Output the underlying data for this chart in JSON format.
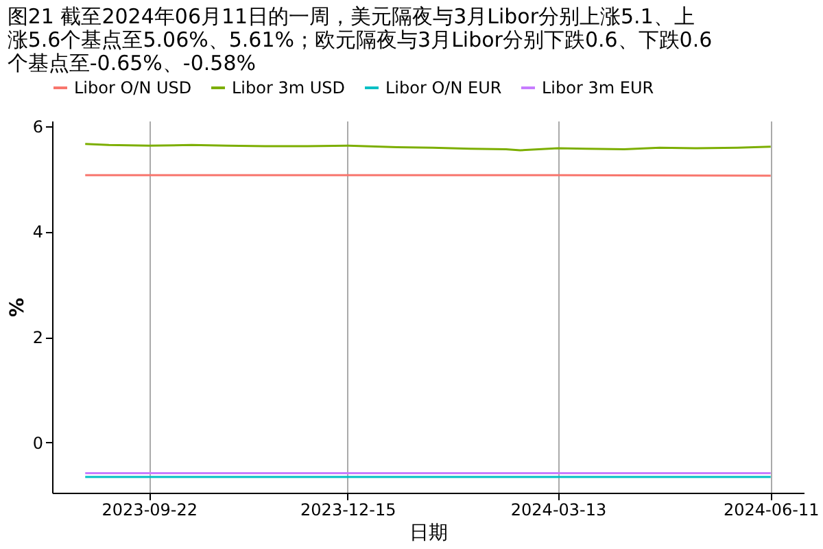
{
  "chart_data": {
    "type": "line",
    "title": "图21  截至2024年06月11日的一周，美元隔夜与3月Libor分别上涨5.1、上涨5.6个基点至5.06%、5.61%；欧元隔夜与3月Libor分别下跌0.6、下跌0.6个基点至-0.65%、-0.58%",
    "xlabel": "日期",
    "ylabel": "%",
    "series": [
      {
        "name": "Libor O/N USD",
        "color": "#f8766d",
        "x": [
          "2023-08-26",
          "2023-09-22",
          "2023-12-15",
          "2024-03-13",
          "2024-06-11"
        ],
        "values": [
          5.07,
          5.07,
          5.07,
          5.07,
          5.06
        ]
      },
      {
        "name": "Libor 3m USD",
        "color": "#7cae00",
        "x": [
          "2023-08-26",
          "2023-09-05",
          "2023-09-22",
          "2023-10-10",
          "2023-10-25",
          "2023-11-10",
          "2023-11-28",
          "2023-12-15",
          "2024-01-05",
          "2024-01-20",
          "2024-02-05",
          "2024-02-20",
          "2024-02-26",
          "2024-03-13",
          "2024-03-25",
          "2024-04-10",
          "2024-04-25",
          "2024-05-10",
          "2024-05-28",
          "2024-06-11"
        ],
        "values": [
          5.66,
          5.64,
          5.63,
          5.64,
          5.63,
          5.62,
          5.62,
          5.63,
          5.6,
          5.59,
          5.57,
          5.56,
          5.54,
          5.58,
          5.57,
          5.56,
          5.59,
          5.58,
          5.59,
          5.61
        ]
      },
      {
        "name": "Libor O/N EUR",
        "color": "#00bfc4",
        "x": [
          "2023-08-26",
          "2023-12-15",
          "2024-06-11"
        ],
        "values": [
          -0.65,
          -0.65,
          -0.65
        ]
      },
      {
        "name": "Libor 3m EUR",
        "color": "#c77cff",
        "x": [
          "2023-08-26",
          "2023-12-15",
          "2024-06-11"
        ],
        "values": [
          -0.58,
          -0.58,
          -0.58
        ]
      }
    ],
    "xlim": [
      "2023-08-12",
      "2024-06-25"
    ],
    "xticks": [
      "2023-09-22",
      "2023-12-15",
      "2024-03-13",
      "2024-06-11"
    ],
    "ylim": [
      -0.95,
      6.1
    ],
    "yticks": [
      0,
      2,
      4,
      6
    ],
    "grid": "x",
    "legend": "top",
    "line_style": "solid",
    "marker": "none"
  }
}
